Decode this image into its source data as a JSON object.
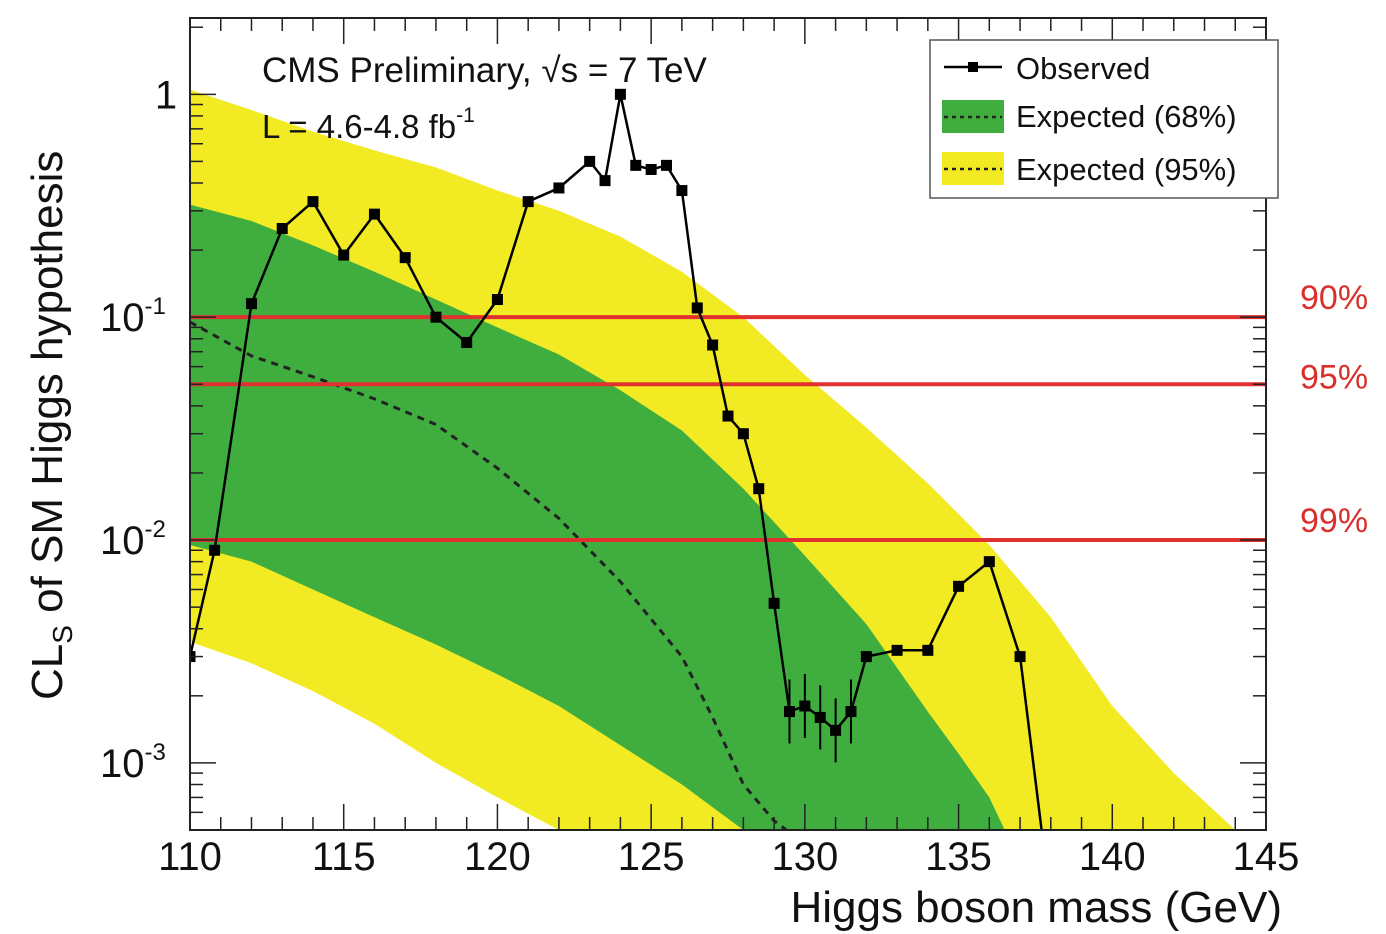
{
  "chart_data": {
    "type": "line",
    "title": "",
    "annotations": {
      "experiment": "CMS Preliminary, √s = 7 TeV",
      "lumi_prefix": "L = 4.6-4.8 fb",
      "lumi_sup": "-1"
    },
    "xlabel": "Higgs boson mass (GeV)",
    "ylabel": {
      "main": "CL",
      "sub": "S",
      "rest": " of SM Higgs hypothesis"
    },
    "xlim": [
      110,
      145
    ],
    "ylim": [
      0.0005,
      2.2
    ],
    "y_scale": "log",
    "x_ticks": [
      110,
      115,
      120,
      125,
      130,
      135,
      140,
      145
    ],
    "x_tick_labels": [
      "110",
      "115",
      "120",
      "125",
      "130",
      "135",
      "140",
      "145"
    ],
    "y_ticks": [
      {
        "value": 1,
        "base": "1",
        "exp": ""
      },
      {
        "value": 0.1,
        "base": "10",
        "exp": "-1"
      },
      {
        "value": 0.01,
        "base": "10",
        "exp": "-2"
      },
      {
        "value": 0.001,
        "base": "10",
        "exp": "-3"
      }
    ],
    "legend": {
      "placement": "top-right",
      "entries": [
        {
          "label": "Observed",
          "kind": "line-marker"
        },
        {
          "label": "Expected (68%)",
          "kind": "band",
          "color": "#3fae3f"
        },
        {
          "label": "Expected (95%)",
          "kind": "band",
          "color": "#f2ea22"
        }
      ]
    },
    "cl_lines": [
      {
        "value": 0.1,
        "label": "90%"
      },
      {
        "value": 0.05,
        "label": "95%"
      },
      {
        "value": 0.01,
        "label": "99%"
      }
    ],
    "colors": {
      "band95": "#f2ea22",
      "band68": "#3fae3f",
      "observed": "#000000",
      "expected": "#222222",
      "cl_line": "#e03030",
      "cl_label": "#d9302c"
    },
    "observed": {
      "x": [
        110,
        110.8,
        112,
        113,
        114,
        115,
        116,
        117,
        118,
        119,
        120,
        121,
        122,
        123,
        123.5,
        124,
        124.5,
        125,
        125.5,
        126,
        126.5,
        127,
        127.5,
        128,
        128.5,
        129,
        129.5,
        130,
        130.5,
        131,
        131.5,
        132,
        133,
        134,
        135,
        136,
        137,
        137.7
      ],
      "y": [
        0.003,
        0.009,
        0.115,
        0.25,
        0.33,
        0.19,
        0.29,
        0.185,
        0.1,
        0.077,
        0.12,
        0.33,
        0.38,
        0.5,
        0.41,
        1.0,
        0.48,
        0.46,
        0.48,
        0.37,
        0.11,
        0.075,
        0.036,
        0.03,
        0.017,
        0.0052,
        0.0017,
        0.0018,
        0.0016,
        0.0014,
        0.0017,
        0.003,
        0.0032,
        0.0032,
        0.0062,
        0.008,
        0.003,
        0.0005
      ]
    },
    "expected": {
      "x": [
        110,
        112,
        114,
        116,
        118,
        120,
        122,
        124,
        126,
        127,
        128,
        129,
        129.4
      ],
      "y": [
        0.095,
        0.067,
        0.054,
        0.043,
        0.033,
        0.021,
        0.0125,
        0.0065,
        0.003,
        0.0016,
        0.0008,
        0.00055,
        0.0005
      ]
    },
    "band68": {
      "x": [
        110,
        112,
        114,
        116,
        118,
        120,
        122,
        124,
        126,
        128,
        130,
        132,
        134,
        135,
        136,
        136.5
      ],
      "low": [
        0.0095,
        0.008,
        0.006,
        0.0045,
        0.0034,
        0.0025,
        0.0018,
        0.0012,
        0.0008,
        0.0005,
        0.0005,
        0.0005,
        0.0005,
        0.0005,
        0.0005,
        0.0005
      ],
      "high": [
        0.32,
        0.27,
        0.21,
        0.16,
        0.12,
        0.09,
        0.068,
        0.047,
        0.031,
        0.017,
        0.0085,
        0.0042,
        0.0017,
        0.0011,
        0.0007,
        0.0005
      ]
    },
    "band95": {
      "x": [
        110,
        112,
        114,
        116,
        118,
        120,
        122,
        124,
        126,
        128,
        130,
        132,
        134,
        136,
        138,
        140,
        142,
        144
      ],
      "low": [
        0.0035,
        0.0028,
        0.0021,
        0.0015,
        0.001,
        0.0007,
        0.0005,
        0.0005,
        0.0005,
        0.0005,
        0.0005,
        0.0005,
        0.0005,
        0.0005,
        0.0005,
        0.0005,
        0.0005,
        0.0005
      ],
      "high": [
        1.05,
        0.85,
        0.68,
        0.56,
        0.47,
        0.37,
        0.3,
        0.23,
        0.16,
        0.1,
        0.055,
        0.032,
        0.018,
        0.0095,
        0.0045,
        0.0018,
        0.0009,
        0.0005
      ]
    }
  }
}
